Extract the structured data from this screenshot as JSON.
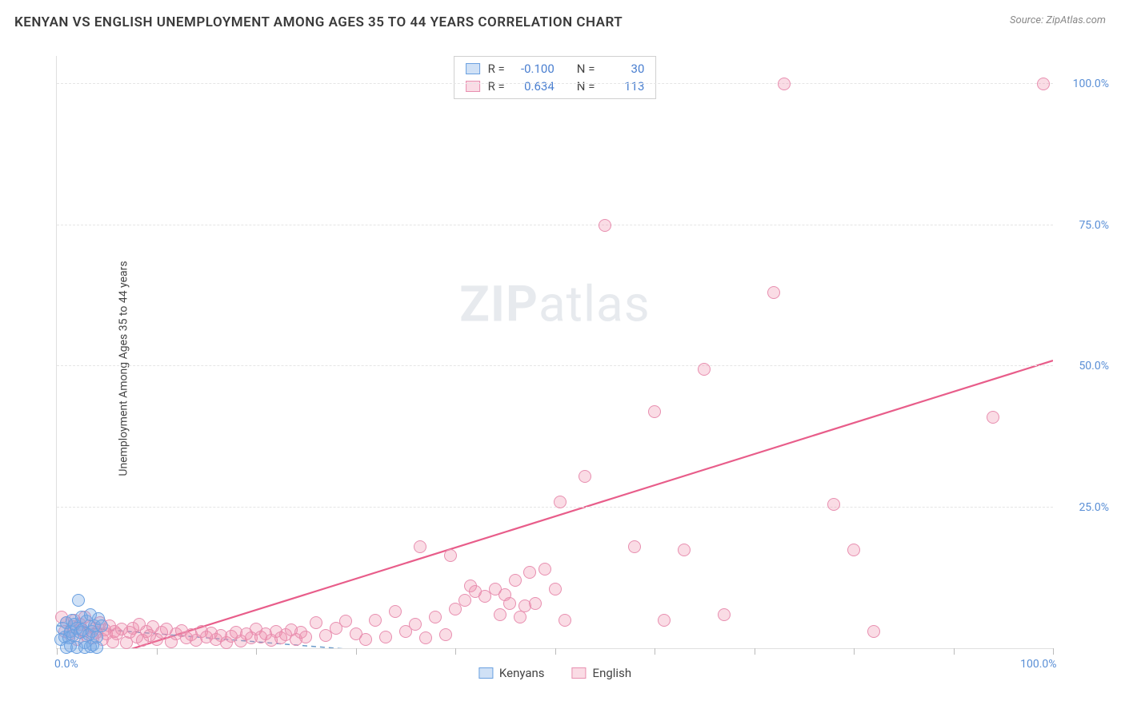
{
  "title": "KENYAN VS ENGLISH UNEMPLOYMENT AMONG AGES 35 TO 44 YEARS CORRELATION CHART",
  "source": "Source: ZipAtlas.com",
  "ylabel": "Unemployment Among Ages 35 to 44 years",
  "watermark_a": "ZIP",
  "watermark_b": "atlas",
  "chart": {
    "type": "scatter",
    "xlim": [
      0,
      100
    ],
    "ylim": [
      0,
      105
    ],
    "background": "#ffffff",
    "grid_color": "#e5e5e5",
    "grid_dash": "4,4",
    "y_gridlines": [
      25,
      50,
      75,
      100
    ],
    "y_tick_labels": [
      "25.0%",
      "50.0%",
      "75.0%",
      "100.0%"
    ],
    "x_ticks": [
      0,
      10,
      20,
      30,
      40,
      50,
      60,
      70,
      80,
      90,
      100
    ],
    "x_tick_labels_shown": {
      "0": "0.0%",
      "100": "100.0%"
    },
    "point_radius": 8,
    "point_stroke_width": 1
  },
  "series": {
    "kenyans": {
      "label": "Kenyans",
      "fill": "rgba(120,170,230,0.35)",
      "stroke": "#6aa0e0",
      "r_label": "R =",
      "r_value": "-0.100",
      "n_label": "N =",
      "n_value": "30",
      "trend": {
        "color": "#6a9bc9",
        "dash": "6,5",
        "width": 1.5,
        "x1": 0,
        "y1": 4.0,
        "x2": 35,
        "y2": -1.0
      },
      "points": [
        [
          0.4,
          1.5
        ],
        [
          0.6,
          3.5
        ],
        [
          0.8,
          2.0
        ],
        [
          1.0,
          4.5
        ],
        [
          1.2,
          1.8
        ],
        [
          1.4,
          3.0
        ],
        [
          1.5,
          5.0
        ],
        [
          1.6,
          2.2
        ],
        [
          1.8,
          4.2
        ],
        [
          2.0,
          3.6
        ],
        [
          2.2,
          8.5
        ],
        [
          2.3,
          2.8
        ],
        [
          2.5,
          5.5
        ],
        [
          2.6,
          3.2
        ],
        [
          2.8,
          1.0
        ],
        [
          3.0,
          4.8
        ],
        [
          3.2,
          2.4
        ],
        [
          3.4,
          6.0
        ],
        [
          3.5,
          3.0
        ],
        [
          3.6,
          0.5
        ],
        [
          3.8,
          4.0
        ],
        [
          4.0,
          2.0
        ],
        [
          4.2,
          5.2
        ],
        [
          1.0,
          0.2
        ],
        [
          1.4,
          0.4
        ],
        [
          2.0,
          0.2
        ],
        [
          2.8,
          0.2
        ],
        [
          3.4,
          0.3
        ],
        [
          4.0,
          0.2
        ],
        [
          4.5,
          4.0
        ]
      ]
    },
    "english": {
      "label": "English",
      "fill": "rgba(240,140,170,0.30)",
      "stroke": "#e88fb0",
      "r_label": "R =",
      "r_value": "0.634",
      "n_label": "N =",
      "n_value": "113",
      "trend": {
        "color": "#e85d8a",
        "dash": "",
        "width": 2.2,
        "x1": 5,
        "y1": -1.5,
        "x2": 100,
        "y2": 51.0
      },
      "points": [
        [
          0.5,
          5.5
        ],
        [
          0.8,
          3.0
        ],
        [
          1.0,
          4.5
        ],
        [
          1.3,
          2.5
        ],
        [
          1.6,
          3.8
        ],
        [
          1.8,
          5.0
        ],
        [
          2.0,
          1.5
        ],
        [
          2.3,
          4.2
        ],
        [
          2.6,
          3.0
        ],
        [
          2.8,
          5.5
        ],
        [
          3.0,
          2.2
        ],
        [
          3.3,
          4.0
        ],
        [
          3.6,
          1.8
        ],
        [
          3.8,
          3.5
        ],
        [
          4.0,
          2.8
        ],
        [
          4.3,
          4.5
        ],
        [
          4.6,
          1.5
        ],
        [
          4.8,
          3.2
        ],
        [
          5.0,
          2.5
        ],
        [
          5.3,
          4.0
        ],
        [
          5.6,
          1.2
        ],
        [
          5.8,
          3.0
        ],
        [
          6.0,
          2.6
        ],
        [
          6.5,
          3.4
        ],
        [
          7.0,
          1.0
        ],
        [
          7.3,
          2.8
        ],
        [
          7.6,
          3.6
        ],
        [
          8.0,
          2.0
        ],
        [
          8.3,
          4.2
        ],
        [
          8.6,
          1.4
        ],
        [
          9.0,
          3.0
        ],
        [
          9.3,
          2.2
        ],
        [
          9.6,
          3.8
        ],
        [
          10.0,
          1.6
        ],
        [
          10.5,
          2.9
        ],
        [
          11.0,
          3.4
        ],
        [
          11.5,
          1.2
        ],
        [
          12.0,
          2.6
        ],
        [
          12.5,
          3.1
        ],
        [
          13.0,
          1.8
        ],
        [
          13.5,
          2.4
        ],
        [
          14.0,
          1.4
        ],
        [
          14.5,
          3.0
        ],
        [
          15.0,
          2.0
        ],
        [
          15.5,
          2.7
        ],
        [
          16.0,
          1.5
        ],
        [
          16.5,
          2.3
        ],
        [
          17.0,
          1.0
        ],
        [
          17.5,
          2.1
        ],
        [
          18.0,
          2.8
        ],
        [
          18.5,
          1.3
        ],
        [
          19.0,
          2.5
        ],
        [
          19.5,
          1.9
        ],
        [
          20.0,
          3.4
        ],
        [
          20.5,
          2.0
        ],
        [
          21.0,
          2.6
        ],
        [
          21.5,
          1.4
        ],
        [
          22.0,
          3.0
        ],
        [
          22.5,
          1.8
        ],
        [
          23.0,
          2.4
        ],
        [
          23.5,
          3.2
        ],
        [
          24.0,
          1.6
        ],
        [
          24.5,
          2.8
        ],
        [
          25.0,
          2.0
        ],
        [
          26.0,
          4.5
        ],
        [
          27.0,
          2.2
        ],
        [
          28.0,
          3.6
        ],
        [
          29.0,
          4.8
        ],
        [
          30.0,
          2.5
        ],
        [
          31.0,
          1.5
        ],
        [
          32.0,
          5.0
        ],
        [
          33.0,
          2.0
        ],
        [
          34.0,
          6.5
        ],
        [
          35.0,
          3.0
        ],
        [
          36.0,
          4.2
        ],
        [
          36.5,
          18.0
        ],
        [
          37.0,
          1.8
        ],
        [
          38.0,
          5.5
        ],
        [
          39.0,
          2.4
        ],
        [
          39.5,
          16.5
        ],
        [
          40.0,
          7.0
        ],
        [
          41.0,
          8.5
        ],
        [
          41.5,
          11.0
        ],
        [
          42.0,
          10.0
        ],
        [
          43.0,
          9.2
        ],
        [
          44.0,
          10.5
        ],
        [
          45.0,
          9.5
        ],
        [
          45.5,
          8.0
        ],
        [
          46.0,
          12.0
        ],
        [
          47.0,
          7.5
        ],
        [
          47.5,
          13.5
        ],
        [
          48.0,
          8.0
        ],
        [
          49.0,
          14.0
        ],
        [
          50.0,
          10.5
        ],
        [
          50.5,
          26.0
        ],
        [
          53.0,
          30.5
        ],
        [
          55.0,
          75.0
        ],
        [
          58.0,
          18.0
        ],
        [
          60.0,
          42.0
        ],
        [
          61.0,
          5.0
        ],
        [
          63.0,
          17.5
        ],
        [
          65.0,
          49.5
        ],
        [
          67.0,
          6.0
        ],
        [
          72.0,
          63.0
        ],
        [
          73.0,
          100.0
        ],
        [
          78.0,
          25.5
        ],
        [
          80.0,
          17.5
        ],
        [
          82.0,
          3.0
        ],
        [
          94.0,
          41.0
        ],
        [
          99.0,
          100.0
        ],
        [
          44.5,
          6.0
        ],
        [
          46.5,
          5.5
        ],
        [
          51.0,
          5.0
        ]
      ]
    }
  }
}
